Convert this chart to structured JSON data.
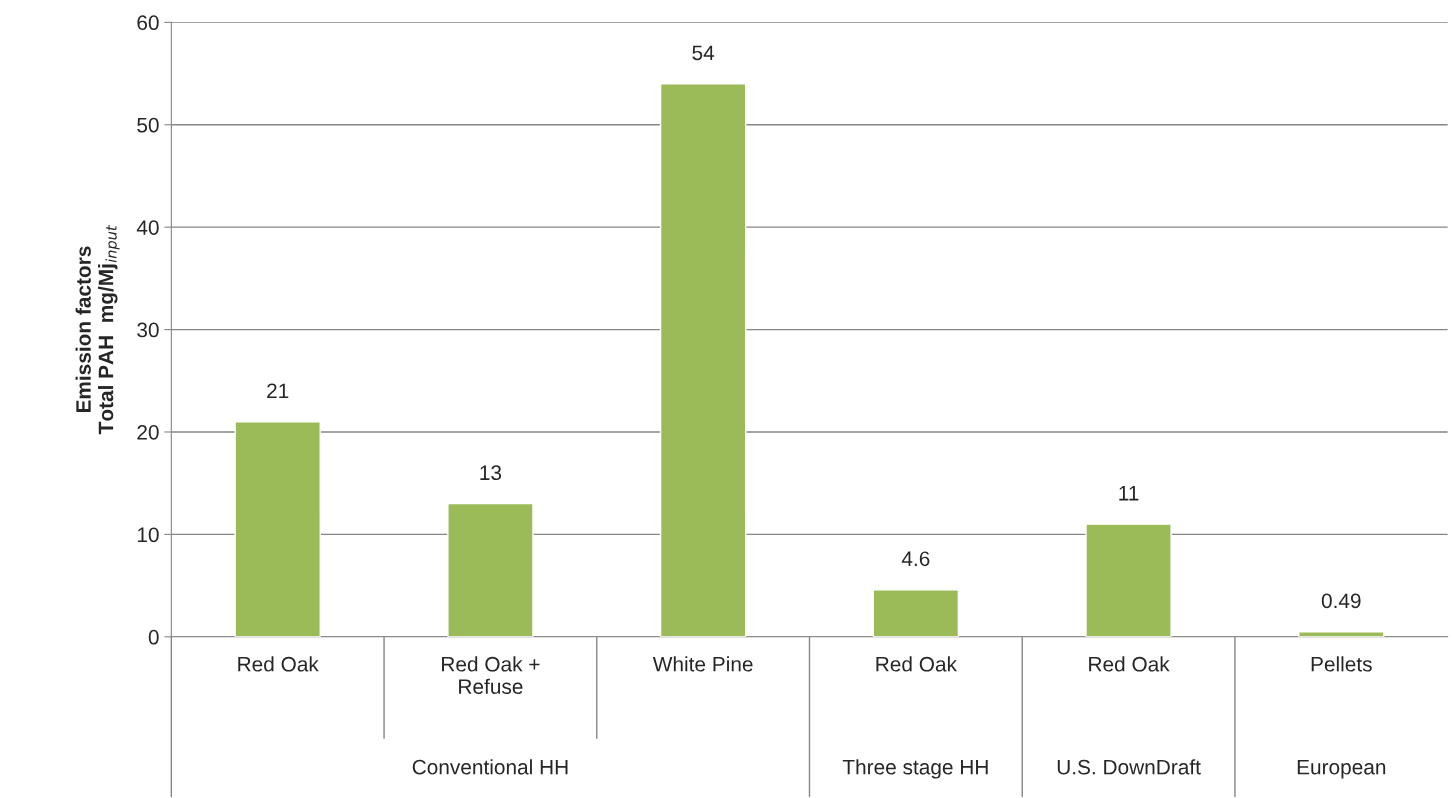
{
  "chart_data": {
    "type": "bar",
    "ylabel": "Emission factors\nTotal PAH  mg/Mj$_{input}$",
    "categories": [
      "Red Oak",
      "Red Oak +\nRefuse",
      "White Pine",
      "Red Oak",
      "Red Oak",
      "Pellets"
    ],
    "values": [
      21,
      13,
      54,
      4.6,
      11,
      0.49
    ],
    "color": "#9bbb59",
    "ylim": [
      0,
      60
    ],
    "yticks": [
      0,
      10,
      20,
      30,
      40,
      50,
      60
    ],
    "grid": "y",
    "data_labels": true,
    "annotations": [
      "Conventional HH",
      "Three stage HH",
      "U.S. DownDraft",
      "European"
    ]
  }
}
